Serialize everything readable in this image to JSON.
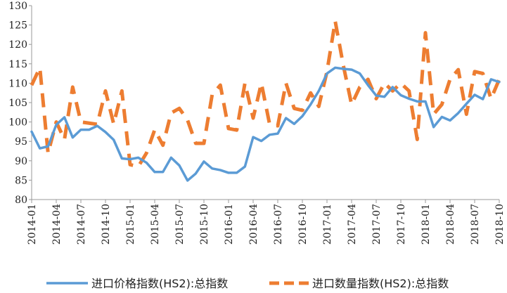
{
  "chart_data": {
    "type": "line",
    "title": "",
    "xlabel": "",
    "ylabel": "",
    "ylim": [
      80,
      130
    ],
    "yticks": [
      80,
      85,
      90,
      95,
      100,
      105,
      110,
      115,
      120,
      125,
      130
    ],
    "grid": false,
    "legend_position": "bottom",
    "x": [
      "2014-01",
      "2014-02",
      "2014-03",
      "2014-04",
      "2014-05",
      "2014-06",
      "2014-07",
      "2014-08",
      "2014-09",
      "2014-10",
      "2014-11",
      "2014-12",
      "2015-01",
      "2015-02",
      "2015-03",
      "2015-04",
      "2015-05",
      "2015-06",
      "2015-07",
      "2015-08",
      "2015-09",
      "2015-10",
      "2015-11",
      "2015-12",
      "2016-01",
      "2016-02",
      "2016-03",
      "2016-04",
      "2016-05",
      "2016-06",
      "2016-07",
      "2016-08",
      "2016-09",
      "2016-10",
      "2016-11",
      "2016-12",
      "2017-01",
      "2017-02",
      "2017-03",
      "2017-04",
      "2017-05",
      "2017-06",
      "2017-07",
      "2017-08",
      "2017-09",
      "2017-10",
      "2017-11",
      "2017-12",
      "2018-01",
      "2018-02",
      "2018-03",
      "2018-04",
      "2018-05",
      "2018-06",
      "2018-07",
      "2018-08",
      "2018-09",
      "2018-10"
    ],
    "xtick_labels": [
      "2014-01",
      "2014-04",
      "2014-07",
      "2014-10",
      "2015-01",
      "2015-04",
      "2015-07",
      "2015-10",
      "2016-01",
      "2016-04",
      "2016-07",
      "2016-10",
      "2017-01",
      "2017-04",
      "2017-07",
      "2017-10",
      "2018-01",
      "2018-04",
      "2018-07",
      "2018-10"
    ],
    "series": [
      {
        "name": "进口价格指数(HS2):总指数",
        "color": "#5b9bd5",
        "style": "solid",
        "values": [
          97.5,
          93.2,
          93.7,
          99.3,
          101.2,
          96.0,
          98.0,
          98.0,
          99.0,
          97.4,
          95.4,
          90.6,
          90.4,
          90.8,
          89.5,
          87.1,
          87.1,
          90.8,
          88.8,
          84.9,
          86.7,
          89.8,
          88.0,
          87.6,
          86.9,
          86.9,
          88.5,
          96.1,
          95.1,
          96.7,
          97.0,
          101.0,
          99.5,
          101.5,
          104.5,
          108.0,
          112.5,
          114.0,
          113.7,
          113.5,
          112.5,
          109.5,
          106.8,
          106.5,
          109.0,
          106.9,
          106.0,
          105.3,
          105.3,
          98.7,
          101.3,
          100.4,
          102.3,
          104.7,
          107.0,
          105.9,
          111.0,
          110.3
        ]
      },
      {
        "name": "进口数量指数(HS2):总指数",
        "color": "#ed7d31",
        "style": "dashed",
        "values": [
          109.5,
          114.0,
          92.0,
          100.0,
          95.5,
          109.0,
          100.0,
          99.7,
          99.4,
          108.0,
          99.5,
          108.0,
          89.0,
          88.5,
          92.0,
          98.0,
          94.0,
          102.3,
          103.5,
          100.5,
          94.5,
          94.5,
          107.0,
          109.5,
          98.3,
          97.9,
          110.0,
          101.0,
          110.0,
          99.5,
          99.0,
          110.0,
          103.5,
          103.0,
          107.5,
          104.0,
          113.0,
          126.0,
          114.5,
          104.5,
          109.0,
          111.0,
          106.0,
          110.0,
          108.0,
          110.0,
          108.0,
          95.5,
          123.0,
          102.0,
          104.5,
          111.0,
          113.5,
          102.0,
          113.0,
          112.5,
          106.0,
          111.0
        ]
      }
    ]
  }
}
